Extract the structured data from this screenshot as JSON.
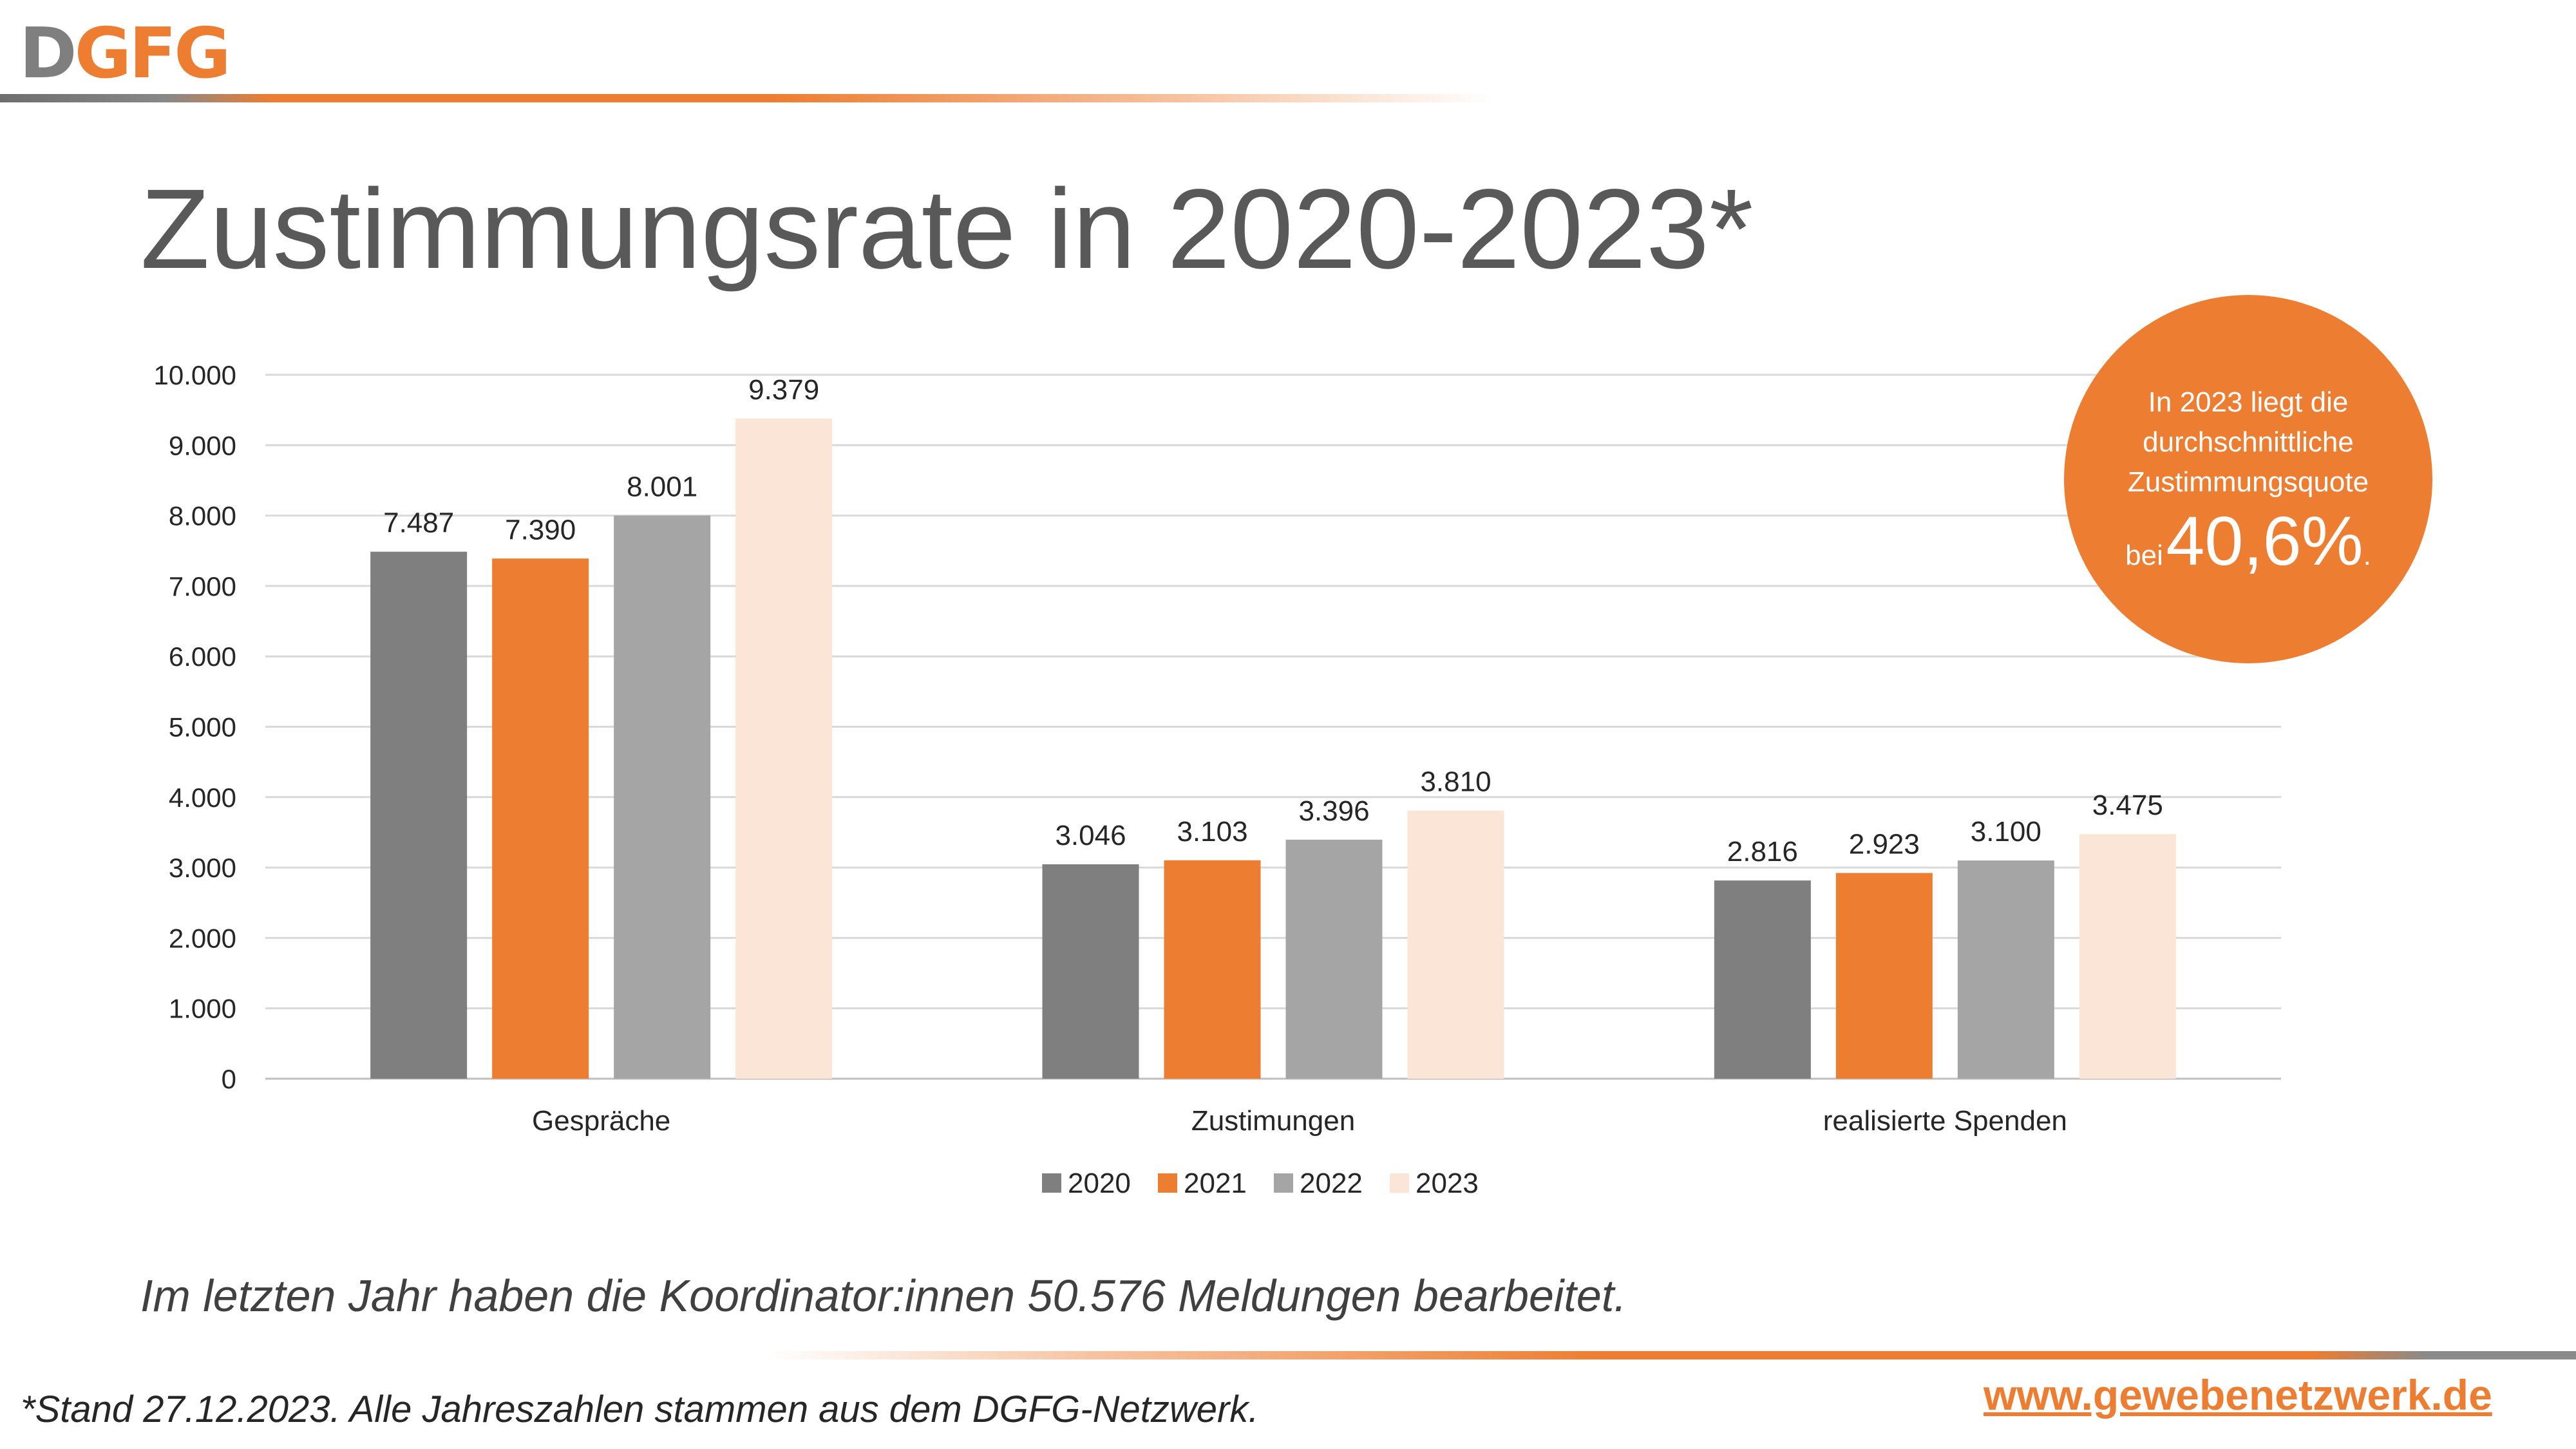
{
  "logo": {
    "letter_d": "D",
    "letters_rest": "GFG"
  },
  "title": "Zustimmungsrate in 2020-2023*",
  "callout": {
    "line1": "In 2023 liegt die",
    "line2": "durchschnittliche",
    "line3": "Zustimmungsquote",
    "prefix": "bei",
    "value": "40,6%",
    "suffix": "."
  },
  "note": "Im letzten Jahr haben die Koordinator:innen 50.576 Meldungen bearbeitet.",
  "footnote": "*Stand 27.12.2023. Alle Jahreszahlen stammen aus dem DGFG-Netzwerk.",
  "website": "www.gewebenetzwerk.de",
  "colors": {
    "2020": "#7f7f7f",
    "2021": "#ed7d31",
    "2022": "#a5a5a5",
    "2023": "#fbe5d6"
  },
  "chart_data": {
    "type": "bar",
    "categories": [
      "Gespräche",
      "Zustimungen",
      "realisierte Spenden"
    ],
    "series": [
      {
        "name": "2020",
        "values": [
          7487,
          3046,
          2816
        ],
        "labels": [
          "7.487",
          "3.046",
          "2.816"
        ]
      },
      {
        "name": "2021",
        "values": [
          7390,
          3103,
          2923
        ],
        "labels": [
          "7.390",
          "3.103",
          "2.923"
        ]
      },
      {
        "name": "2022",
        "values": [
          8001,
          3396,
          3100
        ],
        "labels": [
          "8.001",
          "3.396",
          "3.100"
        ]
      },
      {
        "name": "2023",
        "values": [
          9379,
          3810,
          3475
        ],
        "labels": [
          "9.379",
          "3.810",
          "3.475"
        ]
      }
    ],
    "yticks": [
      0,
      1000,
      2000,
      3000,
      4000,
      5000,
      6000,
      7000,
      8000,
      9000,
      10000
    ],
    "ytick_labels": [
      "0",
      "1.000",
      "2.000",
      "3.000",
      "4.000",
      "5.000",
      "6.000",
      "7.000",
      "8.000",
      "9.000",
      "10.000"
    ],
    "ylim": [
      0,
      10000
    ],
    "grid": true,
    "legend": "bottom"
  }
}
